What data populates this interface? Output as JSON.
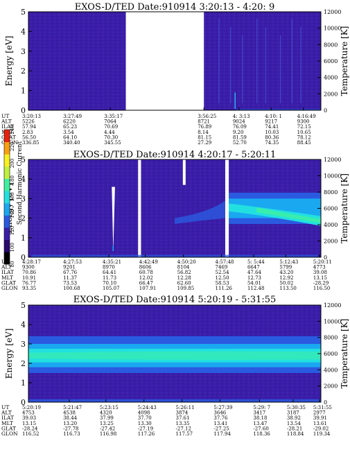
{
  "chart_data": [
    {
      "type": "heatmap",
      "title": "EXOS-D/TED   Date:910914  3:20:13 - 4:20: 9",
      "ylabel": "Energy [eV]",
      "y2label": "Temperature [K]",
      "ylim": [
        0,
        5
      ],
      "y2lim": [
        0,
        12000
      ],
      "yticks": [
        "0",
        "1",
        "2",
        "3",
        "4",
        "5"
      ],
      "y2ticks": [
        "0",
        "2000",
        "4000",
        "6000",
        "8000",
        "10000",
        "12000"
      ],
      "gap_fraction": [
        0.333,
        0.6
      ],
      "row_labels": [
        "UT",
        "ALT",
        "ILAT",
        "MLT",
        "GLAT",
        "GLON"
      ],
      "columns": [
        {
          "pos": 0.0,
          "values": [
            "3:20:13",
            "5226",
            "57.94",
            "2.83",
            "56.50",
            "336.85"
          ]
        },
        {
          "pos": 0.14,
          "values": [
            "3:27:49",
            "6220",
            "65.23",
            "3.54",
            "64.10",
            "340.40"
          ]
        },
        {
          "pos": 0.28,
          "values": [
            "3:35:17",
            "7064",
            "70.69",
            "4.44",
            "70.30",
            "345.55"
          ]
        },
        {
          "pos": 0.6,
          "values": [
            "3:56:25",
            "8721",
            "76.89",
            "8.14",
            "81.15",
            "27.29"
          ]
        },
        {
          "pos": 0.72,
          "values": [
            "4: 3:13",
            "9024",
            "76.09",
            "9.20",
            "81.59",
            "52.70"
          ]
        },
        {
          "pos": 0.83,
          "values": [
            "4:10: 1",
            "9217",
            "74.41",
            "10.03",
            "80.36",
            "74.35"
          ]
        },
        {
          "pos": 0.94,
          "values": [
            "4:16:49",
            "9300",
            "72.15",
            "10.65",
            "78.12",
            "88.45"
          ]
        }
      ]
    },
    {
      "type": "heatmap",
      "title": "EXOS-D/TED   Date:910914  4:20:17 - 5:20:11",
      "ylabel": "Energy [eV]",
      "y2label": "Temperature [K]",
      "ylim": [
        0,
        5
      ],
      "y2lim": [
        0,
        12000
      ],
      "yticks": [
        "0",
        "1",
        "2",
        "3",
        "4",
        "5"
      ],
      "y2ticks": [
        "0",
        "2000",
        "4000",
        "6000",
        "8000",
        "10000",
        "12000"
      ],
      "row_labels": [
        "UT",
        "ALT",
        "ILAT",
        "MLT",
        "GLAT",
        "GLON"
      ],
      "columns": [
        {
          "pos": 0.0,
          "values": [
            "4:28:17",
            "9300",
            "70.86",
            "10.91",
            "76.77",
            "93.35"
          ]
        },
        {
          "pos": 0.14,
          "values": [
            "4:27:53",
            "9201",
            "67.76",
            "11.37",
            "73.53",
            "100.68"
          ]
        },
        {
          "pos": 0.275,
          "values": [
            "4:35:21",
            "8970",
            "64.41",
            "11.73",
            "70.10",
            "105.07"
          ]
        },
        {
          "pos": 0.4,
          "values": [
            "4:42:49",
            "8606",
            "60.78",
            "12.02",
            "66.47",
            "107.91"
          ]
        },
        {
          "pos": 0.53,
          "values": [
            "4:50:20",
            "8104",
            "56.82",
            "12.28",
            "62.60",
            "109.85"
          ]
        },
        {
          "pos": 0.66,
          "values": [
            "4:57:48",
            "7469",
            "52.54",
            "12.50",
            "58.53",
            "111.26"
          ]
        },
        {
          "pos": 0.77,
          "values": [
            "5: 5:44",
            "6647",
            "47.64",
            "12.73",
            "54.01",
            "112.48"
          ]
        },
        {
          "pos": 0.88,
          "values": [
            "5:12:43",
            "5799",
            "43.20",
            "12.92",
            "50.02",
            "113.50"
          ]
        },
        {
          "pos": 0.995,
          "values": [
            "5:20:11",
            "4773",
            "39.08",
            "13.15",
            "-28.29",
            "116.50"
          ]
        }
      ]
    },
    {
      "type": "heatmap",
      "title": "EXOS-D/TED   Date:910914  5:20:19 - 5:31:55",
      "ylabel": "Energy [eV]",
      "y2label": "Temperature [K]",
      "ylim": [
        0,
        5
      ],
      "y2lim": [
        0,
        12000
      ],
      "yticks": [
        "0",
        "1",
        "2",
        "3",
        "4",
        "5"
      ],
      "y2ticks": [
        "0",
        "2000",
        "4000",
        "6000",
        "8000",
        "10000",
        "12000"
      ],
      "row_labels": [
        "UT",
        "ALT",
        "ILAT",
        "MLT",
        "GLAT",
        "GLON"
      ],
      "columns": [
        {
          "pos": 0.0,
          "values": [
            "5:20:19",
            "4753",
            "39.03",
            "13.15",
            "-28.24",
            "116.52"
          ]
        },
        {
          "pos": 0.14,
          "values": [
            "5:21:47",
            "4538",
            "38.44",
            "13.20",
            "-27.78",
            "116.73"
          ]
        },
        {
          "pos": 0.265,
          "values": [
            "5:23:15",
            "4320",
            "37.99",
            "13.25",
            "-27.42",
            "116.98"
          ]
        },
        {
          "pos": 0.395,
          "values": [
            "5:24:43",
            "4098",
            "37.70",
            "13.30",
            "-27.19",
            "117.26"
          ]
        },
        {
          "pos": 0.525,
          "values": [
            "5:26:11",
            "3874",
            "37.61",
            "13.35",
            "-27.12",
            "117.57"
          ]
        },
        {
          "pos": 0.655,
          "values": [
            "5:27:39",
            "3646",
            "37.76",
            "13.41",
            "-27.25",
            "117.94"
          ]
        },
        {
          "pos": 0.79,
          "values": [
            "5:29: 7",
            "3417",
            "38.18",
            "13.47",
            "-27.60",
            "118.36"
          ]
        },
        {
          "pos": 0.905,
          "values": [
            "5:30:35",
            "3187",
            "38.92",
            "13.54",
            "-28.21",
            "118.84"
          ]
        },
        {
          "pos": 0.995,
          "values": [
            "5:31:55",
            "2977",
            "39.91",
            "13.61",
            "-29.02",
            "119.34"
          ]
        }
      ]
    }
  ],
  "colorbar": {
    "label": "Second Harmonic Current",
    "ticks": [
      "80",
      "100",
      "120",
      "140",
      "160",
      "180",
      "200",
      "220",
      "240"
    ],
    "colors": [
      "#000000",
      "#2a0a6e",
      "#3a1ea8",
      "#2a5ae0",
      "#1aa8f0",
      "#22e0e0",
      "#40f0a0",
      "#c0f040",
      "#f8f020",
      "#f8a010",
      "#e82010"
    ]
  }
}
